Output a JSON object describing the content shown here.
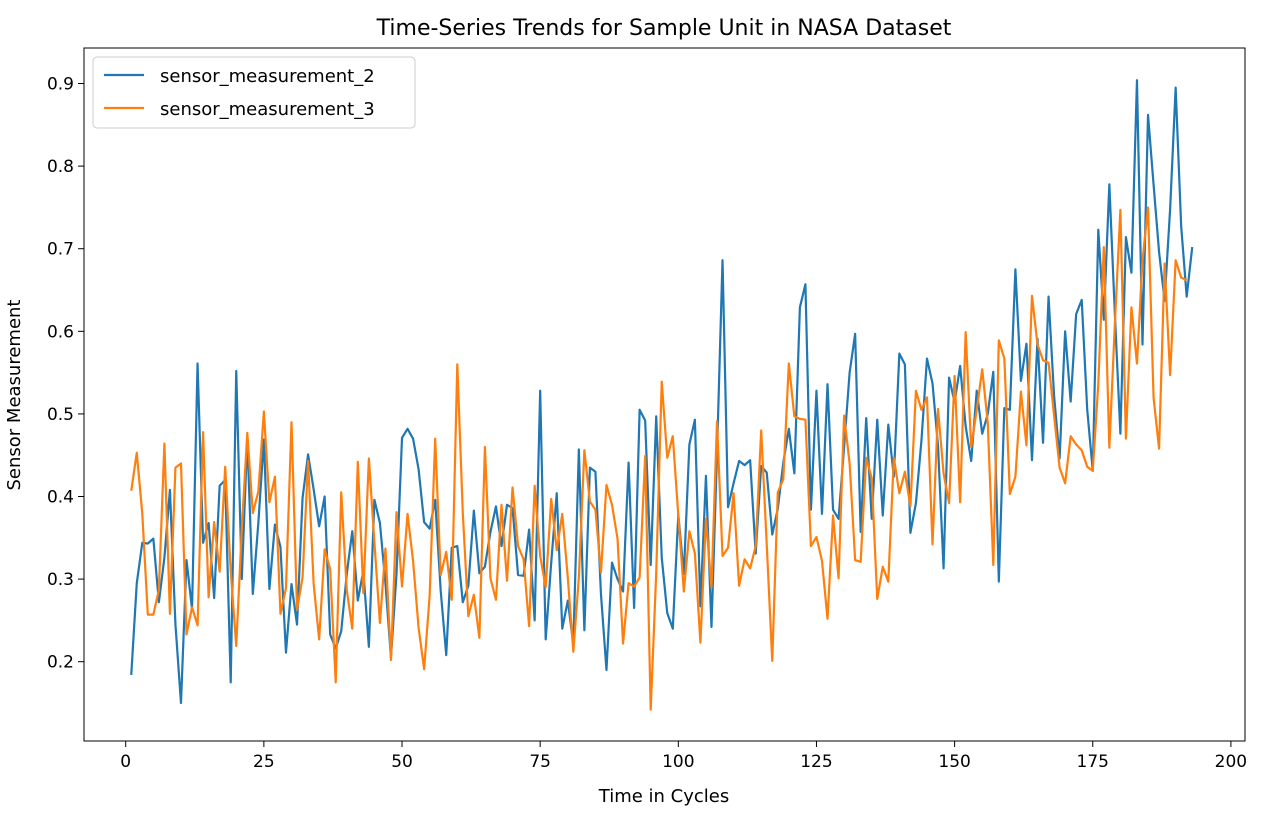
{
  "chart_data": {
    "type": "line",
    "title": "Time-Series Trends for Sample Unit in NASA Dataset",
    "xlabel": "Time in Cycles",
    "ylabel": "Sensor Measurement",
    "xlim": [
      -7.55,
      202.55
    ],
    "ylim": [
      0.104,
      0.943
    ],
    "xticks": [
      0,
      25,
      50,
      75,
      100,
      125,
      150,
      175,
      200
    ],
    "yticks": [
      0.2,
      0.3,
      0.4,
      0.5,
      0.6,
      0.7,
      0.8,
      0.9
    ],
    "grid": false,
    "legend": "top-left",
    "x": {
      "start": 1,
      "end": 192,
      "step": 1
    },
    "series": [
      {
        "name": "sensor_measurement_2",
        "color": "#1f77b4",
        "values": [
          0.184,
          0.295,
          0.344,
          0.343,
          0.349,
          0.272,
          0.326,
          0.408,
          0.245,
          0.15,
          0.323,
          0.264,
          0.561,
          0.344,
          0.368,
          0.277,
          0.413,
          0.42,
          0.175,
          0.552,
          0.3,
          0.471,
          0.282,
          0.368,
          0.469,
          0.288,
          0.366,
          0.339,
          0.211,
          0.294,
          0.245,
          0.398,
          0.451,
          0.409,
          0.364,
          0.4,
          0.233,
          0.216,
          0.237,
          0.306,
          0.358,
          0.274,
          0.31,
          0.218,
          0.396,
          0.368,
          0.295,
          0.205,
          0.306,
          0.471,
          0.482,
          0.47,
          0.433,
          0.369,
          0.361,
          0.396,
          0.286,
          0.208,
          0.338,
          0.34,
          0.272,
          0.292,
          0.383,
          0.307,
          0.315,
          0.357,
          0.388,
          0.34,
          0.39,
          0.386,
          0.305,
          0.304,
          0.36,
          0.25,
          0.528,
          0.227,
          0.32,
          0.404,
          0.24,
          0.274,
          0.221,
          0.457,
          0.238,
          0.435,
          0.43,
          0.282,
          0.19,
          0.32,
          0.3,
          0.285,
          0.441,
          0.265,
          0.505,
          0.492,
          0.317,
          0.497,
          0.326,
          0.259,
          0.24,
          0.378,
          0.306,
          0.463,
          0.493,
          0.267,
          0.425,
          0.242,
          0.452,
          0.686,
          0.387,
          0.416,
          0.443,
          0.438,
          0.444,
          0.331,
          0.437,
          0.429,
          0.354,
          0.385,
          0.441,
          0.482,
          0.428,
          0.629,
          0.657,
          0.384,
          0.528,
          0.379,
          0.536,
          0.384,
          0.373,
          0.46,
          0.55,
          0.597,
          0.357,
          0.495,
          0.373,
          0.493,
          0.377,
          0.487,
          0.424,
          0.573,
          0.56,
          0.356,
          0.392,
          0.468,
          0.567,
          0.537,
          0.461,
          0.313,
          0.544,
          0.514,
          0.558,
          0.485,
          0.443,
          0.528,
          0.476,
          0.5,
          0.551,
          0.297,
          0.507,
          0.505,
          0.675,
          0.54,
          0.585,
          0.444,
          0.591,
          0.465,
          0.642,
          0.522,
          0.446,
          0.6,
          0.515,
          0.621,
          0.638,
          0.505,
          0.431,
          0.723,
          0.614,
          0.778,
          0.621,
          0.476,
          0.714,
          0.671,
          0.904,
          0.584,
          0.862,
          0.778,
          0.696,
          0.637,
          0.748,
          0.895,
          0.727,
          0.642,
          0.702
        ]
      },
      {
        "name": "sensor_measurement_3",
        "color": "#ff7f0e",
        "values": [
          0.407,
          0.453,
          0.379,
          0.257,
          0.257,
          0.287,
          0.464,
          0.258,
          0.435,
          0.44,
          0.233,
          0.266,
          0.244,
          0.478,
          0.278,
          0.369,
          0.309,
          0.436,
          0.31,
          0.219,
          0.36,
          0.477,
          0.38,
          0.406,
          0.503,
          0.393,
          0.424,
          0.258,
          0.289,
          0.49,
          0.263,
          0.302,
          0.443,
          0.295,
          0.227,
          0.336,
          0.312,
          0.175,
          0.405,
          0.287,
          0.24,
          0.442,
          0.283,
          0.446,
          0.345,
          0.247,
          0.337,
          0.202,
          0.381,
          0.291,
          0.379,
          0.322,
          0.241,
          0.191,
          0.28,
          0.47,
          0.305,
          0.333,
          0.275,
          0.56,
          0.38,
          0.255,
          0.281,
          0.229,
          0.46,
          0.301,
          0.275,
          0.39,
          0.298,
          0.411,
          0.34,
          0.324,
          0.243,
          0.413,
          0.328,
          0.29,
          0.397,
          0.335,
          0.379,
          0.302,
          0.212,
          0.302,
          0.456,
          0.394,
          0.384,
          0.308,
          0.414,
          0.39,
          0.349,
          0.222,
          0.295,
          0.291,
          0.302,
          0.449,
          0.142,
          0.307,
          0.539,
          0.447,
          0.473,
          0.377,
          0.285,
          0.358,
          0.331,
          0.223,
          0.373,
          0.29,
          0.491,
          0.328,
          0.338,
          0.404,
          0.292,
          0.324,
          0.313,
          0.34,
          0.48,
          0.342,
          0.201,
          0.405,
          0.421,
          0.561,
          0.497,
          0.494,
          0.493,
          0.34,
          0.351,
          0.322,
          0.252,
          0.377,
          0.301,
          0.498,
          0.44,
          0.323,
          0.321,
          0.447,
          0.422,
          0.276,
          0.315,
          0.297,
          0.447,
          0.404,
          0.43,
          0.388,
          0.528,
          0.505,
          0.52,
          0.342,
          0.506,
          0.428,
          0.392,
          0.546,
          0.393,
          0.599,
          0.46,
          0.505,
          0.554,
          0.489,
          0.317,
          0.589,
          0.567,
          0.403,
          0.424,
          0.527,
          0.462,
          0.643,
          0.584,
          0.565,
          0.562,
          0.498,
          0.435,
          0.416,
          0.473,
          0.463,
          0.456,
          0.436,
          0.431,
          0.536,
          0.702,
          0.459,
          0.609,
          0.747,
          0.47,
          0.629,
          0.561,
          0.686,
          0.75,
          0.52,
          0.458,
          0.682,
          0.547,
          0.686,
          0.665,
          0.662
        ]
      }
    ]
  }
}
